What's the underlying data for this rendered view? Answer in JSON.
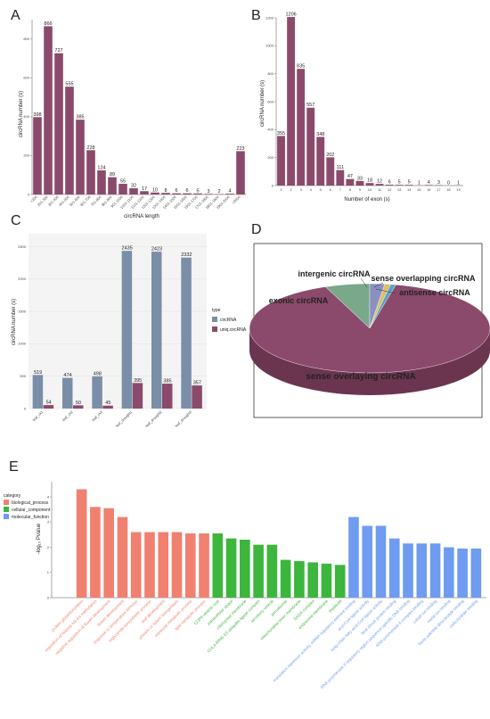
{
  "panels": {
    "a": {
      "label": "A",
      "xlabel": "circRNA length",
      "ylabel": "circRNA number (s)"
    },
    "b": {
      "label": "B",
      "xlabel": "Number of exon (s)",
      "ylabel": "circRNA number (s)"
    },
    "c": {
      "label": "C",
      "ylabel": "circRNA number (s)",
      "legend_title": "type"
    },
    "d": {
      "label": "D"
    },
    "e": {
      "label": "E",
      "ylabel": "-log₁₀ Pvalue",
      "legend_title": "category"
    }
  },
  "colors": {
    "purple": "#8b4a6b",
    "slate": "#7a8ea8",
    "pie_sense_overlaying": "#8b4a6b",
    "pie_exonic": "#7aa88a",
    "pie_intergenic": "#8a90c0",
    "pie_sense_overlapping": "#d9c06a",
    "pie_antisense": "#5aa0c8",
    "bio": "#f08070",
    "cell": "#3cb63c",
    "mol": "#6f9bf0"
  },
  "chart_data": [
    {
      "type": "bar",
      "panel": "A",
      "xlabel": "circRNA length",
      "ylabel": "circRNA number (s)",
      "categories": [
        "<200",
        "201-300",
        "301-400",
        "401-500",
        "501-600",
        "601-700",
        "701-800",
        "801-900",
        "901-1000",
        "1001-1100",
        "1101-1200",
        "1201-1300",
        "1301-1400",
        "1401-1500",
        "1501-1600",
        "1601-1700",
        "1701-1800",
        "1801-1900",
        "1901-2000",
        ">2000"
      ],
      "values": [
        398,
        866,
        727,
        555,
        385,
        228,
        124,
        89,
        55,
        32,
        17,
        10,
        8,
        6,
        6,
        5,
        3,
        2,
        4,
        223
      ],
      "yticks": [
        "0",
        "200",
        "400",
        "600",
        "800"
      ],
      "ylim": [
        0,
        900
      ]
    },
    {
      "type": "bar",
      "panel": "B",
      "xlabel": "Number of exon (s)",
      "ylabel": "circRNA number (s)",
      "categories": [
        "1",
        "2",
        "3",
        "4",
        "5",
        "6",
        "7",
        "8",
        "9",
        "10",
        "11",
        "12",
        "13",
        "14",
        "15",
        "16",
        "17",
        "18",
        "19"
      ],
      "values": [
        355,
        1206,
        835,
        557,
        348,
        202,
        111,
        47,
        33,
        18,
        12,
        6,
        5,
        5,
        1,
        4,
        3,
        0,
        1
      ],
      "yticks": [
        "0",
        "200",
        "400",
        "600",
        "800",
        "1000",
        "1200"
      ],
      "ylim": [
        0,
        1200
      ]
    },
    {
      "type": "bar",
      "panel": "C",
      "ylabel": "circRNA number (s)",
      "categories": [
        "leaf_ck1",
        "leaf_ck2",
        "leaf_ck3",
        "leaf_drought1",
        "leaf_drought2",
        "leaf_drought3"
      ],
      "series": [
        {
          "name": "circRNA",
          "values": [
            519,
            474,
            498,
            2435,
            2423,
            2332
          ]
        },
        {
          "name": "uniq.circRNA",
          "values": [
            54,
            50,
            45,
            395,
            385,
            357
          ]
        }
      ],
      "yticks": [
        "0",
        "500",
        "1000",
        "1500",
        "2000",
        "2500"
      ],
      "ylim": [
        0,
        2700
      ],
      "legend_title": "type"
    },
    {
      "type": "pie",
      "panel": "D",
      "labels": [
        "sense overlaying circRNA",
        "exonic circRNA",
        "intergenic circRNA",
        "sense overlapping circRNA",
        "antisense circRNA"
      ],
      "values": [
        90.5,
        6.0,
        2.0,
        0.8,
        0.7
      ]
    },
    {
      "type": "bar",
      "panel": "E",
      "ylabel": "-log₁₀ Pvalue",
      "legend_title": "category",
      "categories_legend": [
        "biological_process",
        "cellular_component",
        "molecular_function"
      ],
      "terms": [
        {
          "label": "protein glutathionylation",
          "cat": 0,
          "value": 4.3
        },
        {
          "label": "regulation of histone H3-K4 methylation",
          "cat": 0,
          "value": 3.6
        },
        {
          "label": "negative regulation of flower development",
          "cat": 0,
          "value": 3.55
        },
        {
          "label": "flower development",
          "cat": 0,
          "value": 3.2
        },
        {
          "label": "response to temperature stimulus",
          "cat": 0,
          "value": 2.6
        },
        {
          "label": "triglyceride biosynthetic process",
          "cat": 0,
          "value": 2.6
        },
        {
          "label": "leaf development",
          "cat": 0,
          "value": 2.6
        },
        {
          "label": "phloem or xylem histogenesis",
          "cat": 0,
          "value": 2.6
        },
        {
          "label": "mannose metabolic process",
          "cat": 0,
          "value": 2.55
        },
        {
          "label": "lipid metabolic process",
          "cat": 0,
          "value": 2.55
        },
        {
          "label": "COPII vesicle coat",
          "cat": 1,
          "value": 2.55
        },
        {
          "label": "extracellular space",
          "cat": 1,
          "value": 2.35
        },
        {
          "label": "chloroplast membrane",
          "cat": 1,
          "value": 2.3
        },
        {
          "label": "CUL4-RING E3 ubiquitin ligase complex",
          "cat": 1,
          "value": 2.1
        },
        {
          "label": "secretory vesicle",
          "cat": 1,
          "value": 2.1
        },
        {
          "label": "peroxisome",
          "cat": 1,
          "value": 1.5
        },
        {
          "label": "mitochondrial inner membrane",
          "cat": 1,
          "value": 1.45
        },
        {
          "label": "SAGA complex",
          "cat": 1,
          "value": 1.4
        },
        {
          "label": "endosome membrane",
          "cat": 1,
          "value": 1.35
        },
        {
          "label": "thylakoid",
          "cat": 1,
          "value": 1.3
        },
        {
          "label": "translation repressor activity, mRNA regulatory element binding",
          "cat": 2,
          "value": 3.2
        },
        {
          "label": "acyl-CoA ligase activity",
          "cat": 2,
          "value": 2.85
        },
        {
          "label": "long-chain fatty acid-CoA ligase activity",
          "cat": 2,
          "value": 2.85
        },
        {
          "label": "heat shock protein binding",
          "cat": 2,
          "value": 2.35
        },
        {
          "label": "RNA polymerase II regulatory region sequence-specific DNA binding",
          "cat": 2,
          "value": 2.15
        },
        {
          "label": "RNA polymerase II complex binding",
          "cat": 2,
          "value": 2.15
        },
        {
          "label": "cobalt ion binding",
          "cat": 2,
          "value": 2.15
        },
        {
          "label": "metal ion binding",
          "cat": 2,
          "value": 2.0
        },
        {
          "label": "flavin adenine dinucleotide binding",
          "cat": 2,
          "value": 1.95
        },
        {
          "label": "carbohydrate binding",
          "cat": 2,
          "value": 1.95
        }
      ],
      "yticks": [
        "0",
        "1",
        "2",
        "3",
        "4"
      ],
      "ylim": [
        0,
        4.6
      ]
    }
  ]
}
